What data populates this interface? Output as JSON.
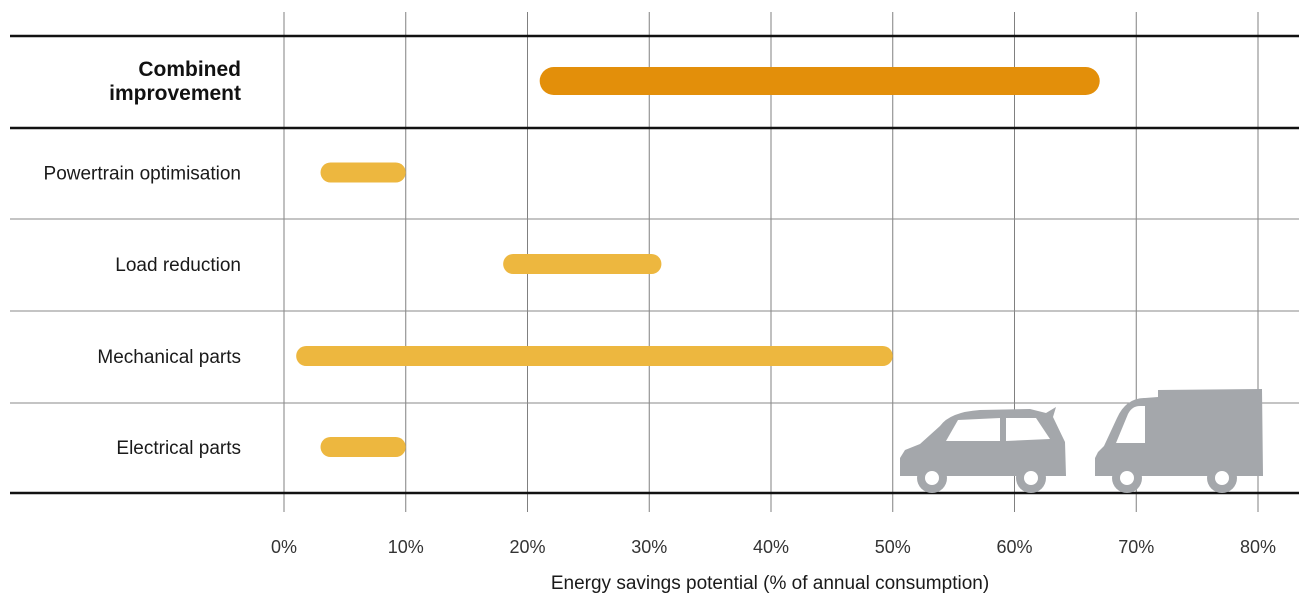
{
  "chart_data": {
    "type": "bar",
    "orientation": "horizontal-range",
    "xlabel": "Energy savings potential (% of annual consumption)",
    "xlim": [
      0,
      80
    ],
    "x_ticks": [
      0,
      10,
      20,
      30,
      40,
      50,
      60,
      70,
      80
    ],
    "x_tick_labels": [
      "0%",
      "10%",
      "20%",
      "30%",
      "40%",
      "50%",
      "60%",
      "70%",
      "80%"
    ],
    "grid": "vertical",
    "categories": [
      {
        "label": "Combined improvement",
        "lines": [
          "Combined",
          "improvement"
        ],
        "bold": true,
        "min": 21,
        "max": 67
      },
      {
        "label": "Powertrain optimisation",
        "lines": [
          "Powertrain optimisation"
        ],
        "bold": false,
        "min": 3,
        "max": 10
      },
      {
        "label": "Load reduction",
        "lines": [
          "Load reduction"
        ],
        "bold": false,
        "min": 18,
        "max": 31
      },
      {
        "label": "Mechanical parts",
        "lines": [
          "Mechanical parts"
        ],
        "bold": false,
        "min": 1,
        "max": 50
      },
      {
        "label": "Electrical parts",
        "lines": [
          "Electrical parts"
        ],
        "bold": false,
        "min": 3,
        "max": 10
      }
    ],
    "colors": {
      "combined": "#e38f0a",
      "component": "#edb73f",
      "vehicles": "#a4a7ab",
      "grid": "#808080"
    }
  },
  "decorations": {
    "icons": [
      "car-icon",
      "van-icon"
    ]
  }
}
